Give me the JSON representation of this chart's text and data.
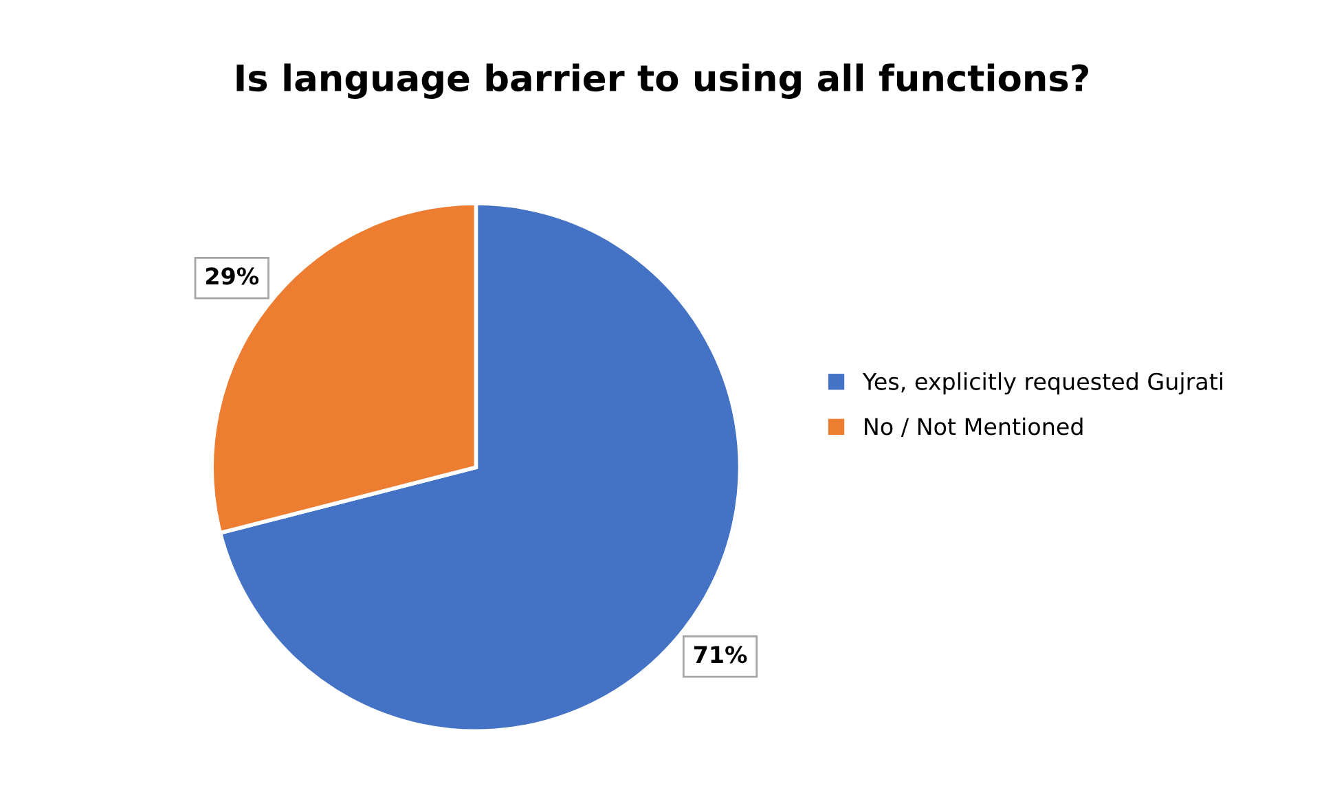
{
  "chart_data": {
    "type": "pie",
    "title": "Is language barrier to using all functions?",
    "categories": [
      "Yes, explicitly requested Gujrati",
      "No / Not Mentioned"
    ],
    "values": [
      71,
      29
    ],
    "colors": [
      "#4472c4",
      "#ed7d31"
    ],
    "value_labels": [
      "71%",
      "29%"
    ],
    "legend": "right"
  }
}
